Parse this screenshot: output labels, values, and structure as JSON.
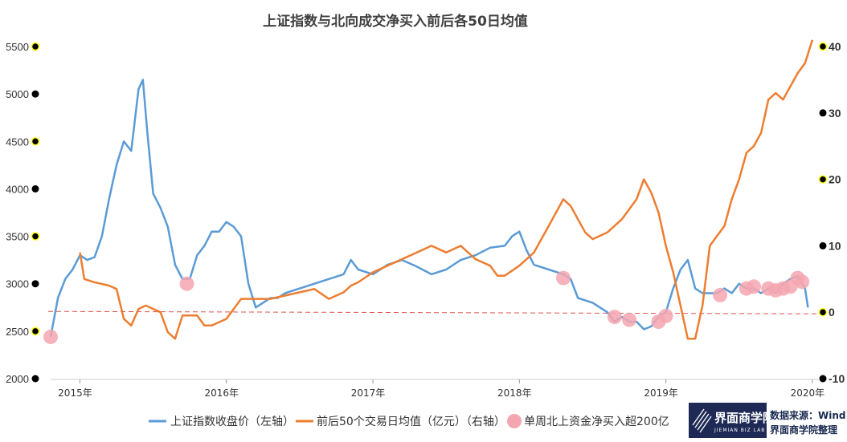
{
  "chart_data": {
    "type": "line",
    "title": "上证指数与北向成交净买入前后各50日均值",
    "left_axis": {
      "ylim": [
        2000,
        5500
      ],
      "ticks": [
        "5500",
        "5000",
        "4500",
        "4000",
        "3500",
        "3000",
        "2500",
        "2000"
      ]
    },
    "right_axis": {
      "ylim": [
        -10,
        40
      ],
      "ticks": [
        "40",
        "30",
        "20",
        "10",
        "0",
        "-10"
      ]
    },
    "x_range": [
      2014.9,
      2020.15
    ],
    "x_ticks": [
      {
        "label": "2015年",
        "value": 2015.1
      },
      {
        "label": "2016年",
        "value": 2016.1
      },
      {
        "label": "2017年",
        "value": 2017.1
      },
      {
        "label": "2018年",
        "value": 2018.1
      },
      {
        "label": "2019年",
        "value": 2019.1
      },
      {
        "label": "2020年",
        "value": 2020.1
      }
    ],
    "reference_line": {
      "axis": "right",
      "value": 0
    },
    "series": [
      {
        "name": "上证指数收盘价（左轴）",
        "axis": "left",
        "color": "#5b9bd5",
        "points": [
          [
            2014.9,
            2440
          ],
          [
            2014.95,
            2850
          ],
          [
            2015.0,
            3050
          ],
          [
            2015.05,
            3150
          ],
          [
            2015.1,
            3300
          ],
          [
            2015.15,
            3250
          ],
          [
            2015.2,
            3280
          ],
          [
            2015.25,
            3500
          ],
          [
            2015.3,
            3900
          ],
          [
            2015.35,
            4250
          ],
          [
            2015.4,
            4500
          ],
          [
            2015.45,
            4400
          ],
          [
            2015.5,
            5050
          ],
          [
            2015.53,
            5150
          ],
          [
            2015.56,
            4600
          ],
          [
            2015.6,
            3950
          ],
          [
            2015.65,
            3800
          ],
          [
            2015.7,
            3600
          ],
          [
            2015.75,
            3200
          ],
          [
            2015.8,
            3050
          ],
          [
            2015.85,
            3050
          ],
          [
            2015.9,
            3300
          ],
          [
            2015.95,
            3400
          ],
          [
            2016.0,
            3550
          ],
          [
            2016.05,
            3550
          ],
          [
            2016.1,
            3650
          ],
          [
            2016.15,
            3600
          ],
          [
            2016.2,
            3500
          ],
          [
            2016.25,
            3000
          ],
          [
            2016.3,
            2750
          ],
          [
            2016.35,
            2800
          ],
          [
            2016.4,
            2850
          ],
          [
            2016.45,
            2850
          ],
          [
            2016.5,
            2900
          ],
          [
            2016.6,
            2950
          ],
          [
            2016.7,
            3000
          ],
          [
            2016.8,
            3050
          ],
          [
            2016.9,
            3100
          ],
          [
            2016.95,
            3250
          ],
          [
            2017.0,
            3150
          ],
          [
            2017.1,
            3100
          ],
          [
            2017.2,
            3200
          ],
          [
            2017.3,
            3250
          ],
          [
            2017.4,
            3180
          ],
          [
            2017.5,
            3100
          ],
          [
            2017.6,
            3150
          ],
          [
            2017.7,
            3250
          ],
          [
            2017.8,
            3300
          ],
          [
            2017.9,
            3380
          ],
          [
            2018.0,
            3400
          ],
          [
            2018.05,
            3500
          ],
          [
            2018.1,
            3550
          ],
          [
            2018.15,
            3350
          ],
          [
            2018.2,
            3200
          ],
          [
            2018.3,
            3150
          ],
          [
            2018.4,
            3100
          ],
          [
            2018.45,
            3050
          ],
          [
            2018.5,
            2850
          ],
          [
            2018.6,
            2800
          ],
          [
            2018.7,
            2700
          ],
          [
            2018.75,
            2600
          ],
          [
            2018.8,
            2650
          ],
          [
            2018.85,
            2600
          ],
          [
            2018.9,
            2600
          ],
          [
            2018.95,
            2520
          ],
          [
            2019.0,
            2550
          ],
          [
            2019.05,
            2650
          ],
          [
            2019.1,
            2700
          ],
          [
            2019.15,
            2950
          ],
          [
            2019.2,
            3150
          ],
          [
            2019.25,
            3250
          ],
          [
            2019.3,
            2950
          ],
          [
            2019.35,
            2900
          ],
          [
            2019.4,
            2900
          ],
          [
            2019.45,
            2900
          ],
          [
            2019.5,
            2950
          ],
          [
            2019.55,
            2900
          ],
          [
            2019.6,
            3000
          ],
          [
            2019.65,
            2950
          ],
          [
            2019.7,
            2950
          ],
          [
            2019.75,
            2900
          ],
          [
            2019.8,
            2950
          ],
          [
            2019.85,
            2900
          ],
          [
            2019.9,
            3000
          ],
          [
            2019.95,
            3050
          ],
          [
            2020.0,
            3080
          ],
          [
            2020.03,
            3000
          ],
          [
            2020.05,
            2950
          ],
          [
            2020.07,
            2750
          ]
        ]
      },
      {
        "name": "前后50个交易日均值（亿元）（右轴）",
        "axis": "right",
        "color": "#ed7d31",
        "points": [
          [
            2015.1,
            9
          ],
          [
            2015.13,
            5
          ],
          [
            2015.2,
            4.5
          ],
          [
            2015.3,
            4
          ],
          [
            2015.35,
            3.5
          ],
          [
            2015.4,
            -1
          ],
          [
            2015.45,
            -2
          ],
          [
            2015.5,
            0.5
          ],
          [
            2015.55,
            1
          ],
          [
            2015.6,
            0.5
          ],
          [
            2015.65,
            0
          ],
          [
            2015.7,
            -3
          ],
          [
            2015.75,
            -4
          ],
          [
            2015.8,
            -0.5
          ],
          [
            2015.9,
            -0.5
          ],
          [
            2015.95,
            -2
          ],
          [
            2016.0,
            -2
          ],
          [
            2016.1,
            -1
          ],
          [
            2016.2,
            2
          ],
          [
            2016.3,
            2
          ],
          [
            2016.4,
            2
          ],
          [
            2016.5,
            2.5
          ],
          [
            2016.6,
            3
          ],
          [
            2016.7,
            3.5
          ],
          [
            2016.8,
            2
          ],
          [
            2016.9,
            3
          ],
          [
            2016.95,
            4
          ],
          [
            2017.0,
            4.5
          ],
          [
            2017.1,
            6
          ],
          [
            2017.2,
            7
          ],
          [
            2017.3,
            8
          ],
          [
            2017.4,
            9
          ],
          [
            2017.5,
            10
          ],
          [
            2017.6,
            9
          ],
          [
            2017.7,
            10
          ],
          [
            2017.8,
            8
          ],
          [
            2017.9,
            7
          ],
          [
            2017.95,
            5.5
          ],
          [
            2018.0,
            5.5
          ],
          [
            2018.1,
            7
          ],
          [
            2018.2,
            9
          ],
          [
            2018.3,
            13
          ],
          [
            2018.4,
            17
          ],
          [
            2018.45,
            16
          ],
          [
            2018.5,
            14
          ],
          [
            2018.55,
            12
          ],
          [
            2018.6,
            11
          ],
          [
            2018.7,
            12
          ],
          [
            2018.8,
            14
          ],
          [
            2018.9,
            17
          ],
          [
            2018.95,
            20
          ],
          [
            2019.0,
            18
          ],
          [
            2019.05,
            15
          ],
          [
            2019.1,
            10
          ],
          [
            2019.15,
            6
          ],
          [
            2019.2,
            1
          ],
          [
            2019.25,
            -4
          ],
          [
            2019.3,
            -4
          ],
          [
            2019.35,
            1
          ],
          [
            2019.4,
            10
          ],
          [
            2019.5,
            13
          ],
          [
            2019.55,
            17
          ],
          [
            2019.6,
            20
          ],
          [
            2019.65,
            24
          ],
          [
            2019.7,
            25
          ],
          [
            2019.75,
            27
          ],
          [
            2019.8,
            32
          ],
          [
            2019.85,
            33
          ],
          [
            2019.9,
            32
          ],
          [
            2019.95,
            34
          ],
          [
            2020.0,
            36
          ],
          [
            2020.05,
            37.5
          ],
          [
            2020.1,
            41
          ]
        ]
      }
    ],
    "highlights": {
      "name": "单周北上资金净买入超200亿",
      "color": "#f4a6b0",
      "points": [
        [
          2014.9,
          2440
        ],
        [
          2015.83,
          3000
        ],
        [
          2018.4,
          3060
        ],
        [
          2018.75,
          2650
        ],
        [
          2018.85,
          2620
        ],
        [
          2019.05,
          2600
        ],
        [
          2019.1,
          2660
        ],
        [
          2019.47,
          2880
        ],
        [
          2019.65,
          2950
        ],
        [
          2019.7,
          2970
        ],
        [
          2019.8,
          2950
        ],
        [
          2019.85,
          2930
        ],
        [
          2019.9,
          2950
        ],
        [
          2019.95,
          2970
        ],
        [
          2020.0,
          3060
        ],
        [
          2020.03,
          3020
        ]
      ]
    }
  },
  "legend": {
    "item1": "上证指数收盘价（左轴）",
    "item2": "前后50个交易日均值（亿元）（右轴）",
    "item3": "单周北上资金净买入超200亿"
  },
  "logo": {
    "name": "界面商学院",
    "sub": "JIEMIAN BIZ LAB"
  },
  "source": {
    "line1": "数据来源：Wind",
    "line2": "界面商学院整理"
  }
}
